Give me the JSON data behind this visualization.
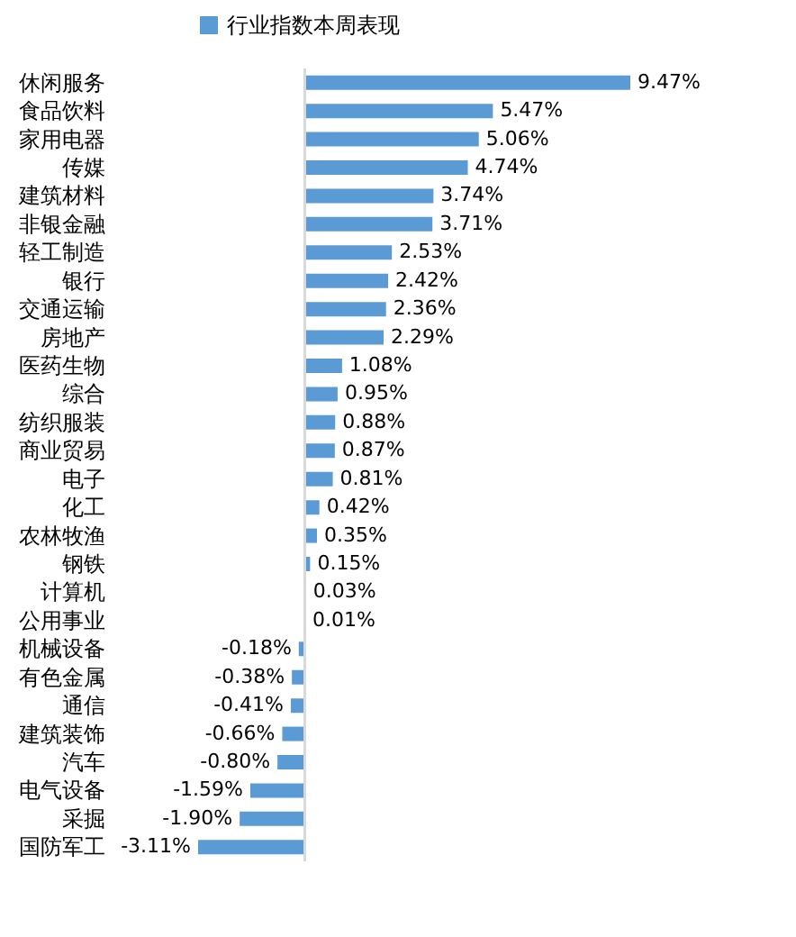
{
  "chart_data": {
    "type": "bar",
    "orientation": "horizontal",
    "legend": "top",
    "categories": [
      "休闲服务",
      "食品饮料",
      "家用电器",
      "传媒",
      "建筑材料",
      "非银金融",
      "轻工制造",
      "银行",
      "交通运输",
      "房地产",
      "医药生物",
      "综合",
      "纺织服装",
      "商业贸易",
      "电子",
      "化工",
      "农林牧渔",
      "钢铁",
      "计算机",
      "公用事业",
      "机械设备",
      "有色金属",
      "通信",
      "建筑装饰",
      "汽车",
      "电气设备",
      "采掘",
      "国防军工"
    ],
    "series": [
      {
        "name": "行业指数本周表现",
        "color": "#5b9bd5",
        "values": [
          9.47,
          5.47,
          5.06,
          4.74,
          3.74,
          3.71,
          2.53,
          2.42,
          2.36,
          2.29,
          1.08,
          0.95,
          0.88,
          0.87,
          0.81,
          0.42,
          0.35,
          0.15,
          0.03,
          0.01,
          -0.18,
          -0.38,
          -0.41,
          -0.66,
          -0.8,
          -1.59,
          -1.9,
          -3.11
        ],
        "value_labels": [
          "9.47%",
          "5.47%",
          "5.06%",
          "4.74%",
          "3.74%",
          "3.71%",
          "2.53%",
          "2.42%",
          "2.36%",
          "2.29%",
          "1.08%",
          "0.95%",
          "0.88%",
          "0.87%",
          "0.81%",
          "0.42%",
          "0.35%",
          "0.15%",
          "0.03%",
          "0.01%",
          "-0.18%",
          "-0.38%",
          "-0.41%",
          "-0.66%",
          "-0.80%",
          "-1.59%",
          "-1.90%",
          "-3.11%"
        ]
      }
    ]
  }
}
